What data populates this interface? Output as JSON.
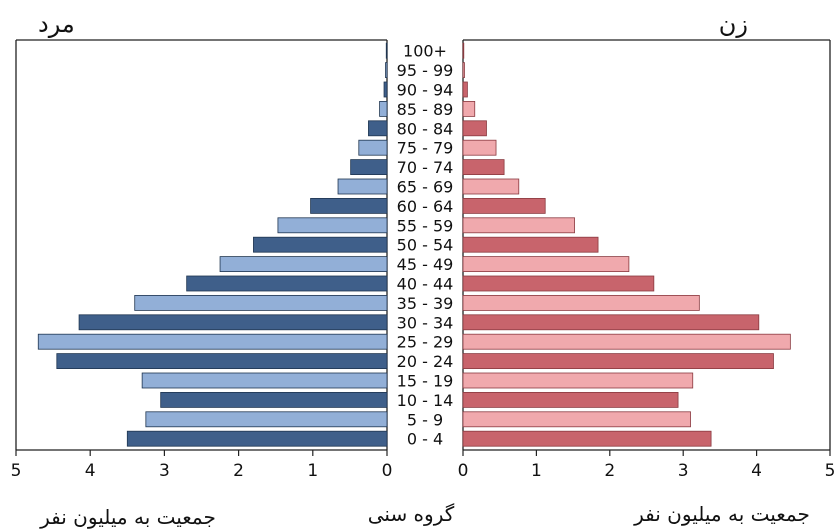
{
  "chart_data": {
    "type": "bar",
    "orientation": "horizontal-population-pyramid",
    "left_title": "مرد",
    "right_title": "زن",
    "center_axis_label": "گروه سنی",
    "left_axis_label": "جمعیت به میلیون نفر",
    "right_axis_label": "جمعیت به میلیون نفر",
    "xlim": [
      0,
      5
    ],
    "left_ticks": [
      "5",
      "4",
      "3",
      "2",
      "1",
      "0"
    ],
    "right_ticks": [
      "0",
      "1",
      "2",
      "3",
      "4",
      "5"
    ],
    "categories": [
      "100+",
      "95 - 99",
      "90 - 94",
      "85 - 89",
      "80 - 84",
      "75 - 79",
      "70 - 74",
      "65 - 69",
      "60 - 64",
      "55 - 59",
      "50 - 54",
      "45 - 49",
      "40 - 44",
      "35 - 39",
      "30 - 34",
      "25 - 29",
      "20 - 24",
      "15 - 19",
      "10 - 14",
      "5 - 9",
      "0 - 4"
    ],
    "series": [
      {
        "side": "left",
        "values": [
          0.01,
          0.02,
          0.04,
          0.1,
          0.25,
          0.38,
          0.49,
          0.66,
          1.03,
          1.47,
          1.8,
          2.25,
          2.7,
          3.4,
          4.15,
          4.7,
          4.45,
          3.3,
          3.05,
          3.25,
          3.5
        ]
      },
      {
        "side": "right",
        "values": [
          0.01,
          0.02,
          0.06,
          0.16,
          0.32,
          0.45,
          0.56,
          0.76,
          1.12,
          1.52,
          1.84,
          2.26,
          2.6,
          3.22,
          4.03,
          4.46,
          4.23,
          3.13,
          2.93,
          3.1,
          3.38
        ]
      }
    ],
    "colors": {
      "male_dark": "#3f5f8a",
      "male_light": "#92afd7",
      "female_dark": "#c8646c",
      "female_light": "#f0a9ad",
      "outline_male": "#1f3550",
      "outline_female": "#8a3a40",
      "frame": "#222222"
    }
  }
}
